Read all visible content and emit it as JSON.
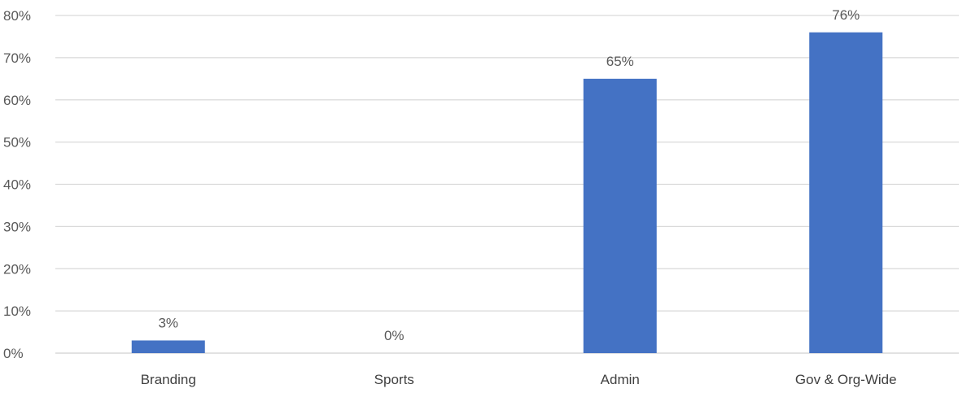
{
  "chart_data": {
    "type": "bar",
    "categories": [
      "Branding",
      "Sports",
      "Admin",
      "Gov & Org-Wide"
    ],
    "values": [
      3,
      0,
      65,
      76
    ],
    "value_labels": [
      "3%",
      "0%",
      "65%",
      "76%"
    ],
    "ylim": [
      0,
      80
    ],
    "yticks": [
      0,
      10,
      20,
      30,
      40,
      50,
      60,
      70,
      80
    ],
    "ytick_labels": [
      "0%",
      "10%",
      "20%",
      "30%",
      "40%",
      "50%",
      "60%",
      "70%",
      "80%"
    ],
    "title": "",
    "xlabel": "",
    "ylabel": "",
    "grid": true,
    "legend": "none",
    "colors": {
      "bar": "#4472C4",
      "grid": "#D9D9D9",
      "text": "#595959"
    }
  }
}
